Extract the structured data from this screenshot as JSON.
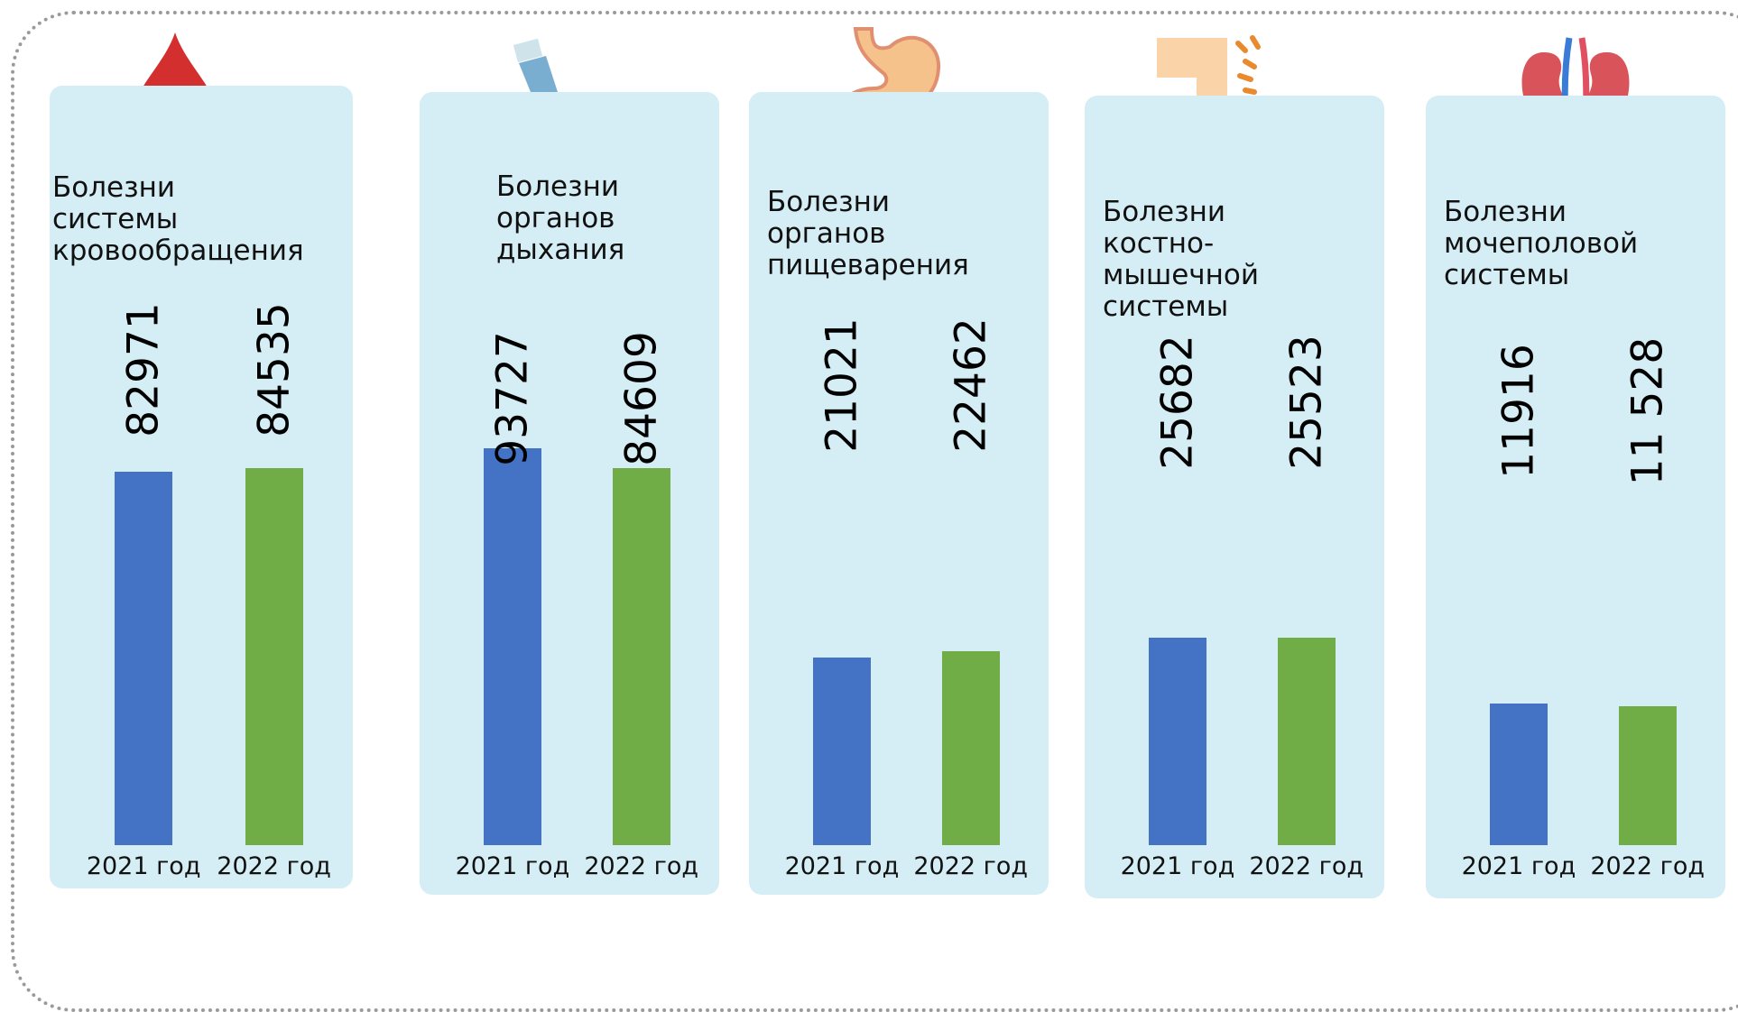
{
  "chart_data": [
    {
      "type": "bar",
      "title": "Болезни\nсистемы\nкровообращения",
      "categories": [
        "2021 год",
        "2022 год"
      ],
      "values": [
        82971,
        84535
      ],
      "colors": [
        "#4472c4",
        "#70ad47"
      ]
    },
    {
      "type": "bar",
      "title": "Болезни\nорганов\nдыхания",
      "categories": [
        "2021 год",
        "2022 год"
      ],
      "values": [
        93727,
        84609
      ],
      "colors": [
        "#4472c4",
        "#70ad47"
      ]
    },
    {
      "type": "bar",
      "title": "Болезни\nорганов\nпищеварения",
      "categories": [
        "2021 год",
        "2022 год"
      ],
      "values": [
        21021,
        22462
      ],
      "colors": [
        "#4472c4",
        "#70ad47"
      ]
    },
    {
      "type": "bar",
      "title": "Болезни\nкостно-\nмышечной\nсистемы",
      "categories": [
        "2021 год",
        "2022 год"
      ],
      "values": [
        25682,
        25523
      ],
      "colors": [
        "#4472c4",
        "#70ad47"
      ]
    },
    {
      "type": "bar",
      "title": "Болезни\nмочеполовой\nсистемы",
      "categories": [
        "2021 год",
        "2022 год"
      ],
      "values": [
        11916,
        11528
      ],
      "value_labels": [
        "11916",
        "11 528"
      ],
      "colors": [
        "#4472c4",
        "#70ad47"
      ]
    }
  ]
}
